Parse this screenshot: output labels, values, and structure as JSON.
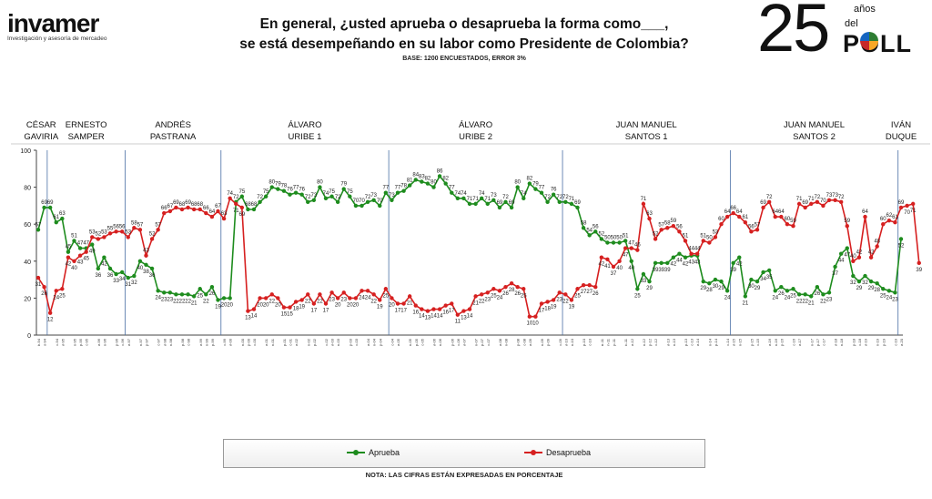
{
  "brand": {
    "name": "invamer",
    "tagline": "Investigación y asesoría de mercadeo"
  },
  "header": {
    "title_line1": "En general, ¿usted aprueba o desaprueba la forma como___,",
    "title_line2": "se está desempeñando en su labor como Presidente de Colombia?",
    "base": "BASE: 1200 ENCUESTADOS, ERROR 3%"
  },
  "badge": {
    "number": "25",
    "anos": "años",
    "del": "del",
    "poll": "POLL",
    "pie_colors": [
      "#2e7d32",
      "#f9a825",
      "#c62828",
      "#1565c0"
    ]
  },
  "note": "NOTA: LAS CIFRAS ESTÁN EXPRESADAS EN PORCENTAJE",
  "chart_data": {
    "type": "line",
    "ylim": [
      0,
      100
    ],
    "yticks": [
      "0",
      "20",
      "40",
      "60",
      "80",
      "100"
    ],
    "periods": [
      {
        "label": [
          "CÉSAR",
          "GAVIRIA"
        ],
        "start": 0,
        "end": 2
      },
      {
        "label": [
          "ERNESTO",
          "SAMPER"
        ],
        "start": 2,
        "end": 15
      },
      {
        "label": [
          "ANDRÉS",
          "PASTRANA"
        ],
        "start": 15,
        "end": 31
      },
      {
        "label": [
          "ÁLVARO",
          "URIBE 1"
        ],
        "start": 31,
        "end": 59
      },
      {
        "label": [
          "ÁLVARO",
          "URIBE 2"
        ],
        "start": 59,
        "end": 88
      },
      {
        "label": [
          "JUAN MANUEL",
          "SANTOS 1"
        ],
        "start": 88,
        "end": 116
      },
      {
        "label": [
          "JUAN MANUEL",
          "SANTOS 2"
        ],
        "start": 116,
        "end": 144
      },
      {
        "label": [
          "IVÁN",
          "DUQUE"
        ],
        "start": 144,
        "end": 155
      }
    ],
    "series": [
      {
        "name": "Aprueba",
        "color": "#1e8c1e",
        "values": [
          57,
          69,
          69,
          61,
          63,
          45,
          51,
          47,
          47,
          49,
          36,
          42,
          36,
          33,
          34,
          31,
          32,
          40,
          38,
          36,
          24,
          23,
          23,
          22,
          22,
          22,
          21,
          25,
          22,
          26,
          19,
          20,
          20,
          72,
          75,
          68,
          68,
          72,
          75,
          80,
          79,
          78,
          76,
          77,
          76,
          72,
          73,
          80,
          74,
          75,
          72,
          79,
          75,
          70,
          70,
          72,
          73,
          70,
          77,
          73,
          77,
          78,
          81,
          84,
          83,
          82,
          80,
          86,
          82,
          77,
          74,
          74,
          71,
          71,
          74,
          71,
          73,
          69,
          72,
          69,
          80,
          74,
          82,
          79,
          77,
          72,
          76,
          72,
          72,
          71,
          69,
          58,
          54,
          56,
          52,
          50,
          50,
          50,
          51,
          40,
          25,
          33,
          29,
          39,
          39,
          39,
          42,
          44,
          42,
          43,
          43,
          29,
          28,
          30,
          29,
          24,
          39,
          42,
          21,
          30,
          29,
          34,
          35,
          24,
          26,
          24,
          25,
          22,
          22,
          21,
          26,
          22,
          23,
          37,
          44,
          47,
          32,
          29,
          32,
          29,
          28,
          25,
          24,
          23,
          52
        ],
        "labels": [
          57,
          69,
          69,
          61,
          63,
          45,
          51,
          47,
          47,
          49,
          36,
          42,
          36,
          33,
          34,
          31,
          32,
          40,
          38,
          36,
          24,
          23,
          23,
          22,
          22,
          22,
          21,
          25,
          22,
          26,
          19,
          20,
          20,
          72,
          75,
          68,
          68,
          72,
          75,
          80,
          79,
          78,
          76,
          77,
          76,
          72,
          73,
          80,
          74,
          75,
          72,
          79,
          75,
          70,
          70,
          72,
          73,
          70,
          77,
          73,
          77,
          78,
          81,
          84,
          83,
          82,
          80,
          86,
          82,
          77,
          74,
          74,
          71,
          71,
          74,
          71,
          73,
          69,
          72,
          69,
          80,
          74,
          82,
          79,
          77,
          72,
          76,
          72,
          72,
          71,
          69,
          58,
          54,
          56,
          52,
          50,
          50,
          50,
          51,
          40,
          25,
          33,
          29,
          39,
          39,
          39,
          42,
          44,
          42,
          43,
          43,
          29,
          28,
          30,
          29,
          24,
          39,
          42,
          21,
          30,
          29,
          34,
          35,
          24,
          26,
          24,
          25,
          22,
          22,
          21,
          26,
          22,
          23,
          37,
          44,
          47,
          32,
          29,
          32,
          29,
          28,
          25,
          24,
          23,
          52
        ]
      },
      {
        "name": "Desaprueba",
        "color": "#d62020",
        "values": [
          31,
          26,
          12,
          24,
          25,
          42,
          40,
          43,
          45,
          53,
          52,
          53,
          55,
          56,
          56,
          53,
          58,
          57,
          43,
          52,
          57,
          66,
          67,
          69,
          68,
          69,
          68,
          68,
          66,
          64,
          67,
          63,
          74,
          71,
          69,
          13,
          14,
          20,
          20,
          22,
          20,
          15,
          15,
          18,
          19,
          22,
          17,
          22,
          17,
          23,
          20,
          23,
          20,
          20,
          24,
          24,
          22,
          19,
          25,
          20,
          17,
          17,
          21,
          16,
          14,
          13,
          14,
          14,
          16,
          17,
          11,
          13,
          14,
          21,
          22,
          23,
          25,
          24,
          26,
          28,
          26,
          25,
          10,
          10,
          17,
          18,
          19,
          23,
          22,
          19,
          25,
          27,
          27,
          26,
          42,
          41,
          37,
          40,
          47,
          47,
          46,
          71,
          63,
          52,
          57,
          58,
          59,
          56,
          51,
          44,
          44,
          51,
          50,
          53,
          60,
          64,
          66,
          64,
          61,
          56,
          57,
          69,
          72,
          64,
          64,
          60,
          59,
          71,
          69,
          71,
          72,
          70,
          73,
          73,
          72,
          59,
          40,
          42,
          64,
          42,
          48,
          60,
          62,
          61,
          69,
          70,
          71,
          39
        ],
        "labels": [
          31,
          26,
          12,
          24,
          25,
          42,
          40,
          43,
          45,
          53,
          52,
          53,
          55,
          56,
          56,
          53,
          58,
          57,
          43,
          52,
          57,
          66,
          67,
          69,
          68,
          69,
          68,
          68,
          66,
          64,
          67,
          63,
          74,
          71,
          69,
          13,
          14,
          20,
          20,
          22,
          20,
          15,
          15,
          18,
          19,
          22,
          17,
          22,
          17,
          23,
          20,
          23,
          20,
          20,
          24,
          24,
          22,
          19,
          25,
          20,
          17,
          17,
          21,
          16,
          14,
          13,
          14,
          14,
          16,
          17,
          11,
          13,
          14,
          21,
          22,
          23,
          25,
          24,
          26,
          28,
          26,
          25,
          10,
          10,
          17,
          18,
          19,
          23,
          22,
          19,
          25,
          27,
          27,
          26,
          42,
          41,
          37,
          40,
          47,
          47,
          46,
          71,
          63,
          52,
          57,
          58,
          59,
          56,
          51,
          44,
          44,
          51,
          50,
          53,
          60,
          64,
          66,
          64,
          61,
          56,
          57,
          69,
          72,
          64,
          64,
          60,
          59,
          71,
          69,
          71,
          72,
          70,
          73,
          73,
          72,
          59,
          40,
          42,
          64,
          42,
          48,
          60,
          62,
          61,
          69,
          70,
          71,
          39
        ]
      }
    ],
    "x_ticks": [
      "Feb-94",
      "Ago-94",
      "Dic-94",
      "Mar-95",
      "Jun-95",
      "Sep-95",
      "Dic-95",
      "Mar-96",
      "Jun-96",
      "Sep-96",
      "Dic-96",
      "Mar-97",
      "Jun-97",
      "Sep-97",
      "Dic-97",
      "Mar-98",
      "Jun-98",
      "Sep-98",
      "Dic-98",
      "Mar-99",
      "Jun-99",
      "Sep-99",
      "Dic-99",
      "Mar-00",
      "Jun-00",
      "Sep-00",
      "Dic-00",
      "Mar-01",
      "Jun-01",
      "Sep-01",
      "Dic-01",
      "Mar-02",
      "Jun-02",
      "Sep-02",
      "Dic-02",
      "Mar-03",
      "Jun-03",
      "Sep-03",
      "Dic-03",
      "Mar-04",
      "Jun-04",
      "Sep-04",
      "Dic-04",
      "Mar-05",
      "Jun-05",
      "Sep-05",
      "Dic-05",
      "Mar-06",
      "Jun-06",
      "Sep-06",
      "Dic-06",
      "Mar-07",
      "Jun-07",
      "Sep-07",
      "Dic-07",
      "Mar-08",
      "Jun-08",
      "Sep-08",
      "Dic-08",
      "Mar-09",
      "Jun-09",
      "Sep-09",
      "Dic-09",
      "Mar-10",
      "Jun-10",
      "Sep-10",
      "Dic-10",
      "Mar-11",
      "Jun-11",
      "Sep-11",
      "Dic-11",
      "Mar-12",
      "Jun-12",
      "Sep-12",
      "Dic-12",
      "Mar-13",
      "Jun-13",
      "Sep-13",
      "Dic-13",
      "Mar-14",
      "Jun-14",
      "Sep-14",
      "Dic-14",
      "Mar-15",
      "Jun-15",
      "Sep-15",
      "Dic-15",
      "Mar-16",
      "Jun-16",
      "Sep-16",
      "Dic-16",
      "Mar-17",
      "Jun-17",
      "Sep-17",
      "Dic-17",
      "Mar-18",
      "Jun-18",
      "Sep-18",
      "Dic-18",
      "Mar-19",
      "Jun-19",
      "Sep-19",
      "Dic-19",
      "Mar-20"
    ],
    "legend": [
      {
        "name": "Aprueba",
        "color": "#1e8c1e"
      },
      {
        "name": "Desaprueba",
        "color": "#d62020"
      }
    ]
  }
}
